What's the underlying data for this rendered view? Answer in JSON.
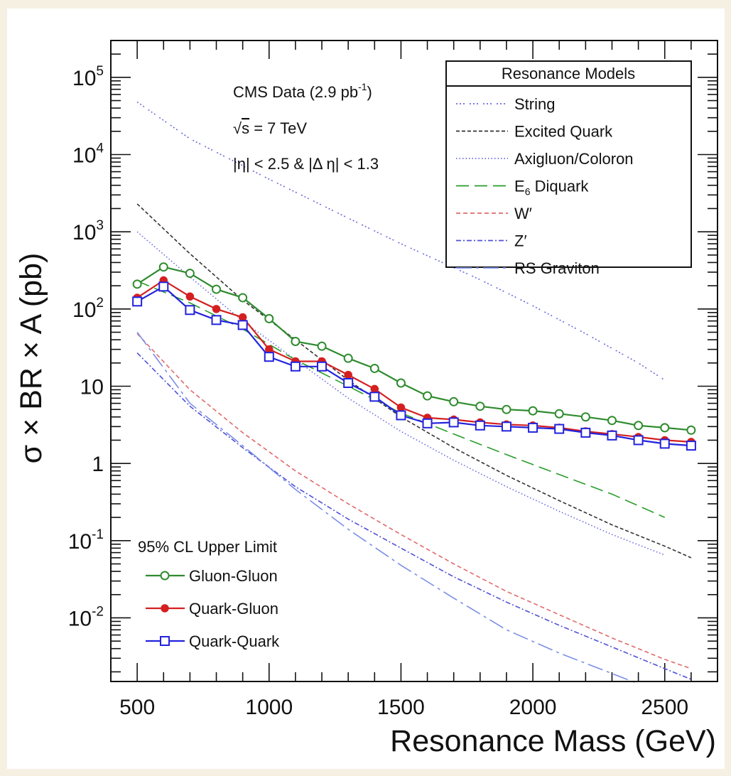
{
  "chart_data": {
    "type": "line",
    "yscale": "log",
    "xlabel": "Resonance Mass (GeV)",
    "ylabel": "σ × BR × A (pb)",
    "xlim": [
      400,
      2700
    ],
    "ylim": [
      0.0015,
      300000
    ],
    "x_ticks": [
      "500",
      "1000",
      "1500",
      "2000",
      "2500"
    ],
    "y_ticks": [
      {
        "value": 0.01,
        "base": "10",
        "exp": "-2"
      },
      {
        "value": 0.1,
        "base": "10",
        "exp": "-1"
      },
      {
        "value": 1,
        "base": "1",
        "exp": ""
      },
      {
        "value": 10,
        "base": "10",
        "exp": ""
      },
      {
        "value": 100,
        "base": "10",
        "exp": "2"
      },
      {
        "value": 1000,
        "base": "10",
        "exp": "3"
      },
      {
        "value": 10000,
        "base": "10",
        "exp": "4"
      },
      {
        "value": 100000,
        "base": "10",
        "exp": "5"
      }
    ],
    "annotations": {
      "line1": "CMS Data (2.9 pb",
      "line1_sup": "-1",
      "line1_end": ")",
      "line2_prefix": "√",
      "line2_s": "s",
      "line2_rest": " = 7 TeV",
      "line3": "|η| < 2.5 & |Δ η| < 1.3"
    },
    "model_legend": {
      "title": "Resonance Models",
      "entries": [
        "String",
        "Excited Quark",
        "Axigluon/Coloron",
        "E",
        "W′",
        "Z′",
        "RS Graviton"
      ],
      "e6_sub": "6",
      "e6_rest": " Diquark",
      "placement": "top-right"
    },
    "limit_legend": {
      "title": "95% CL Upper Limit",
      "entries": [
        "Gluon-Gluon",
        "Quark-Gluon",
        "Quark-Quark"
      ],
      "placement": "bottom-left"
    },
    "models": [
      {
        "name": "String",
        "color": "#6a6ae0",
        "dash": "2 3 2 3 2 7",
        "points": [
          [
            500,
            48000
          ],
          [
            700,
            16000
          ],
          [
            1000,
            4800
          ],
          [
            1300,
            1500
          ],
          [
            1500,
            700
          ],
          [
            1800,
            240
          ],
          [
            2000,
            110
          ],
          [
            2200,
            48
          ],
          [
            2400,
            20
          ],
          [
            2500,
            12
          ]
        ]
      },
      {
        "name": "Excited Quark",
        "color": "#333333",
        "dash": "5 3",
        "points": [
          [
            500,
            2300
          ],
          [
            700,
            520
          ],
          [
            900,
            130
          ],
          [
            1100,
            40
          ],
          [
            1300,
            12
          ],
          [
            1500,
            4
          ],
          [
            1700,
            1.6
          ],
          [
            1900,
            0.7
          ],
          [
            2100,
            0.33
          ],
          [
            2300,
            0.16
          ],
          [
            2500,
            0.085
          ],
          [
            2600,
            0.06
          ]
        ]
      },
      {
        "name": "Axigluon/Coloron",
        "color": "#6a6ae0",
        "dash": "1.5 3",
        "points": [
          [
            500,
            1000
          ],
          [
            700,
            260
          ],
          [
            900,
            70
          ],
          [
            1100,
            22
          ],
          [
            1300,
            7
          ],
          [
            1500,
            2.6
          ],
          [
            1700,
            1.1
          ],
          [
            1900,
            0.5
          ],
          [
            2100,
            0.24
          ],
          [
            2300,
            0.12
          ],
          [
            2500,
            0.065
          ]
        ]
      },
      {
        "name": "E6 Diquark",
        "color": "#2a9d2a",
        "dash": "18 8",
        "points": [
          [
            500,
            230
          ],
          [
            700,
            120
          ],
          [
            900,
            55
          ],
          [
            1100,
            22
          ],
          [
            1300,
            10
          ],
          [
            1500,
            4.5
          ],
          [
            1700,
            2.4
          ],
          [
            1900,
            1.3
          ],
          [
            2100,
            0.72
          ],
          [
            2300,
            0.4
          ],
          [
            2500,
            0.2
          ]
        ]
      },
      {
        "name": "W′",
        "color": "#e06a6a",
        "dash": "6 4",
        "points": [
          [
            500,
            48
          ],
          [
            700,
            9
          ],
          [
            900,
            2.5
          ],
          [
            1100,
            0.8
          ],
          [
            1300,
            0.3
          ],
          [
            1500,
            0.12
          ],
          [
            1700,
            0.05
          ],
          [
            1900,
            0.022
          ],
          [
            2100,
            0.011
          ],
          [
            2300,
            0.0055
          ],
          [
            2500,
            0.0029
          ],
          [
            2600,
            0.0022
          ]
        ]
      },
      {
        "name": "Z′",
        "color": "#5050d8",
        "dash": "7 3 2 3",
        "points": [
          [
            500,
            27
          ],
          [
            700,
            5.5
          ],
          [
            900,
            1.6
          ],
          [
            1100,
            0.5
          ],
          [
            1300,
            0.19
          ],
          [
            1500,
            0.08
          ],
          [
            1700,
            0.034
          ],
          [
            1900,
            0.016
          ],
          [
            2100,
            0.008
          ],
          [
            2300,
            0.0042
          ],
          [
            2500,
            0.0022
          ],
          [
            2600,
            0.0016
          ]
        ]
      },
      {
        "name": "RS Graviton",
        "color": "#7a8ee6",
        "dash": "22 6 4 6",
        "points": [
          [
            500,
            50
          ],
          [
            700,
            6
          ],
          [
            900,
            1.7
          ],
          [
            1100,
            0.46
          ],
          [
            1300,
            0.14
          ],
          [
            1500,
            0.048
          ],
          [
            1700,
            0.018
          ],
          [
            1900,
            0.007
          ],
          [
            2100,
            0.0035
          ],
          [
            2300,
            0.0019
          ],
          [
            2400,
            0.0014
          ]
        ]
      }
    ],
    "series": [
      {
        "name": "Gluon-Gluon",
        "color": "#2e8b2e",
        "marker": "open-circle",
        "x": [
          500,
          600,
          700,
          800,
          900,
          1000,
          1100,
          1200,
          1300,
          1400,
          1500,
          1600,
          1700,
          1800,
          1900,
          2000,
          2100,
          2200,
          2300,
          2400,
          2500,
          2600
        ],
        "values": [
          210,
          350,
          290,
          180,
          140,
          75,
          38,
          33,
          23,
          17,
          11,
          7.5,
          6.3,
          5.5,
          5.0,
          4.8,
          4.4,
          4.0,
          3.6,
          3.1,
          2.9,
          2.7
        ]
      },
      {
        "name": "Quark-Gluon",
        "color": "#d42020",
        "marker": "filled-circle",
        "x": [
          500,
          600,
          700,
          800,
          900,
          1000,
          1100,
          1200,
          1300,
          1400,
          1500,
          1600,
          1700,
          1800,
          1900,
          2000,
          2100,
          2200,
          2300,
          2400,
          2500,
          2600
        ],
        "values": [
          140,
          235,
          145,
          100,
          78,
          30,
          21,
          21,
          14,
          9.2,
          5.3,
          3.9,
          3.7,
          3.4,
          3.2,
          3.1,
          2.9,
          2.6,
          2.4,
          2.2,
          2.0,
          1.9
        ]
      },
      {
        "name": "Quark-Quark",
        "color": "#2222dd",
        "marker": "open-square",
        "x": [
          500,
          600,
          700,
          800,
          900,
          1000,
          1100,
          1200,
          1300,
          1400,
          1500,
          1600,
          1700,
          1800,
          1900,
          2000,
          2100,
          2200,
          2300,
          2400,
          2500,
          2600
        ],
        "values": [
          125,
          195,
          97,
          72,
          62,
          24,
          18,
          18,
          11,
          7.3,
          4.2,
          3.3,
          3.4,
          3.1,
          3.0,
          2.9,
          2.8,
          2.5,
          2.3,
          2.0,
          1.8,
          1.7
        ]
      }
    ]
  }
}
